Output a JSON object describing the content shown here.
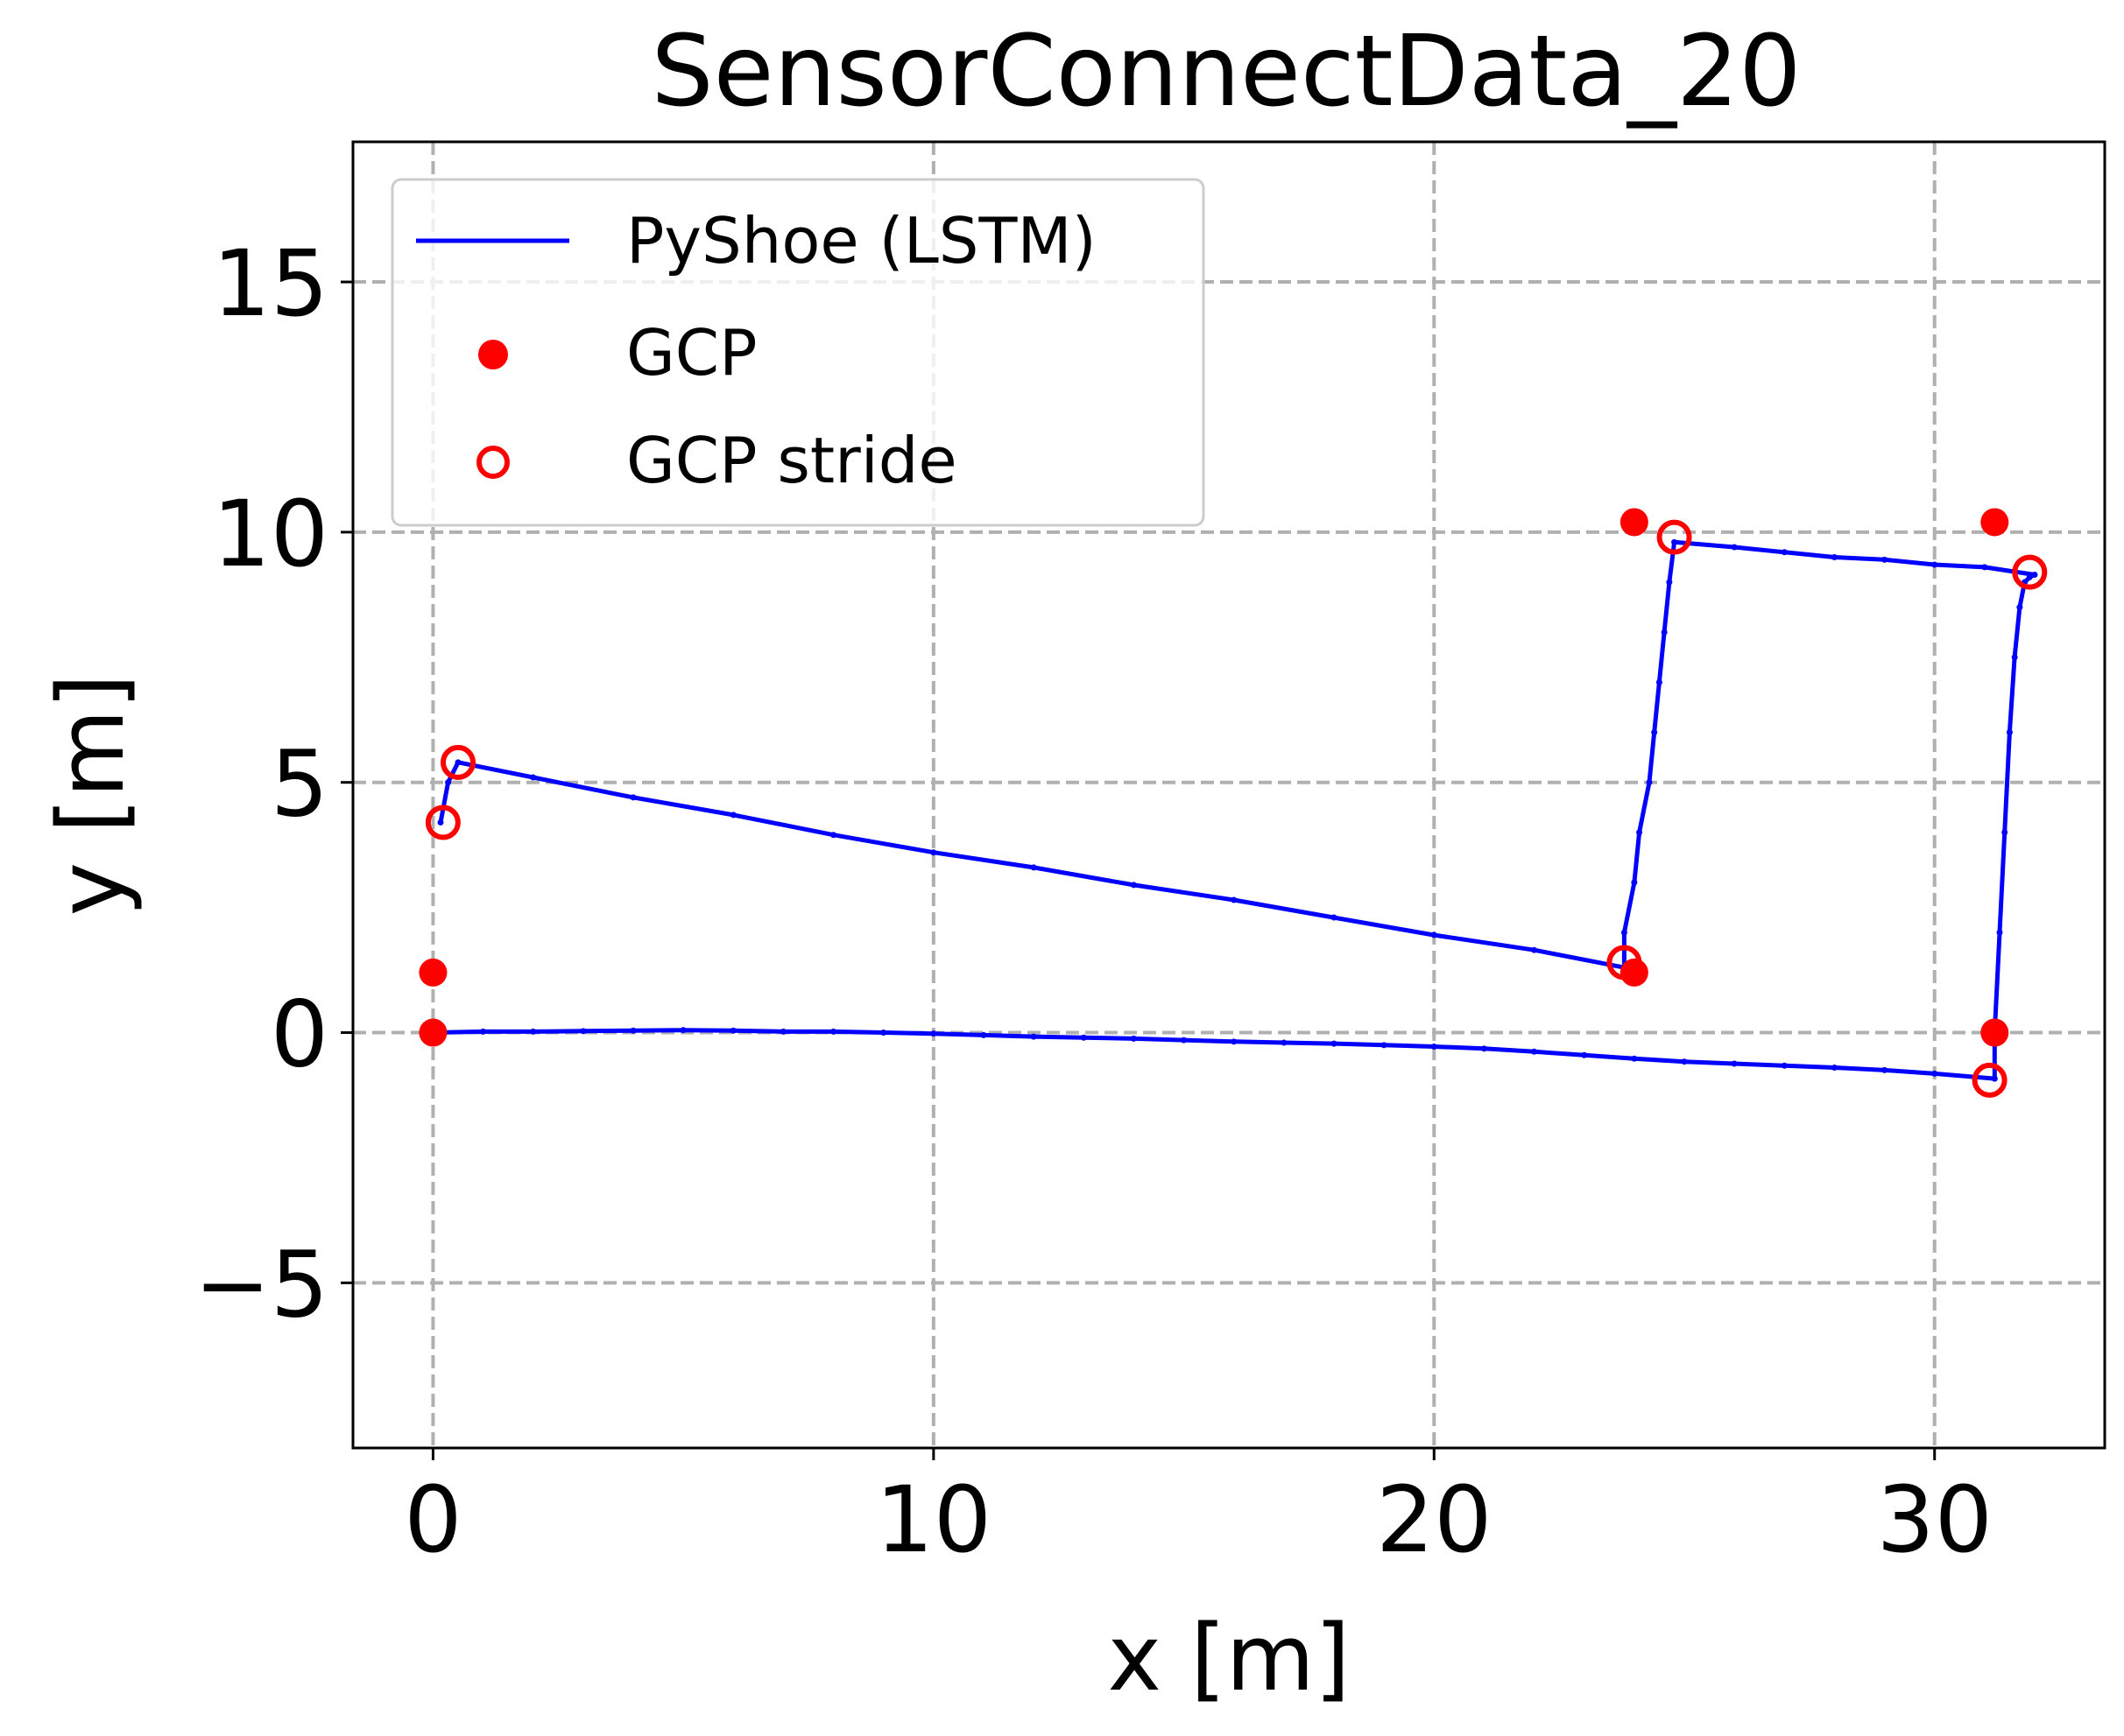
{
  "chart_data": {
    "type": "line",
    "title": "SensorConnectData_20",
    "xlabel": "x [m]",
    "ylabel": "y [m]",
    "xlim": [
      -1.6,
      33.4
    ],
    "ylim": [
      -8.3,
      17.8
    ],
    "xticks": [
      0,
      10,
      20,
      30
    ],
    "xtick_labels": [
      "0",
      "10",
      "20",
      "30"
    ],
    "yticks": [
      -5,
      0,
      5,
      10,
      15
    ],
    "ytick_labels": [
      "−5",
      "0",
      "5",
      "10",
      "15"
    ],
    "grid": true,
    "legend_position": "top-left",
    "series": [
      {
        "name": "PyShoe (LSTM)",
        "kind": "line",
        "color": "#0000ff",
        "x": [
          0.0,
          1.0,
          2.0,
          3.0,
          4.0,
          5.0,
          6.0,
          7.0,
          8.0,
          9.0,
          10.0,
          11.0,
          12.0,
          13.0,
          14.0,
          15.0,
          16.0,
          17.0,
          18.0,
          19.0,
          20.0,
          21.0,
          22.0,
          23.0,
          24.0,
          25.0,
          26.0,
          27.0,
          28.0,
          29.0,
          30.0,
          31.2,
          31.2,
          31.3,
          31.4,
          31.5,
          31.6,
          31.7,
          31.8,
          31.9,
          32.0,
          31.0,
          30.0,
          29.0,
          28.0,
          27.0,
          26.0,
          24.8,
          24.7,
          24.6,
          24.5,
          24.4,
          24.3,
          24.1,
          24.0,
          23.8,
          23.8,
          22.0,
          20.0,
          18.0,
          16.0,
          14.0,
          12.0,
          10.0,
          8.0,
          6.0,
          4.0,
          2.0,
          0.5,
          0.3,
          0.15
        ],
        "y": [
          0.0,
          0.02,
          0.02,
          0.03,
          0.04,
          0.05,
          0.04,
          0.02,
          0.02,
          0.0,
          -0.02,
          -0.05,
          -0.08,
          -0.1,
          -0.12,
          -0.15,
          -0.18,
          -0.2,
          -0.22,
          -0.25,
          -0.28,
          -0.32,
          -0.38,
          -0.45,
          -0.52,
          -0.58,
          -0.62,
          -0.66,
          -0.7,
          -0.75,
          -0.82,
          -0.92,
          0.0,
          2.0,
          4.0,
          6.0,
          7.5,
          8.5,
          9.0,
          9.1,
          9.15,
          9.3,
          9.35,
          9.45,
          9.5,
          9.6,
          9.7,
          9.8,
          9.0,
          8.0,
          7.0,
          6.0,
          5.0,
          4.0,
          3.0,
          2.0,
          1.3,
          1.65,
          1.95,
          2.3,
          2.65,
          2.95,
          3.3,
          3.6,
          3.95,
          4.35,
          4.7,
          5.1,
          5.4,
          5.0,
          4.2
        ]
      },
      {
        "name": "GCP",
        "kind": "scatter",
        "marker": "filled-circle",
        "color": "#ff0000",
        "x": [
          0.0,
          0.0,
          24.0,
          24.0,
          31.2,
          31.2
        ],
        "y": [
          0.0,
          1.2,
          1.2,
          10.2,
          10.2,
          0.0
        ]
      },
      {
        "name": "GCP stride",
        "kind": "scatter",
        "marker": "open-circle",
        "color": "#ff0000",
        "x": [
          0.2,
          0.5,
          23.8,
          24.8,
          31.9,
          31.1
        ],
        "y": [
          4.2,
          5.4,
          1.4,
          9.9,
          9.2,
          -0.95
        ]
      }
    ]
  }
}
